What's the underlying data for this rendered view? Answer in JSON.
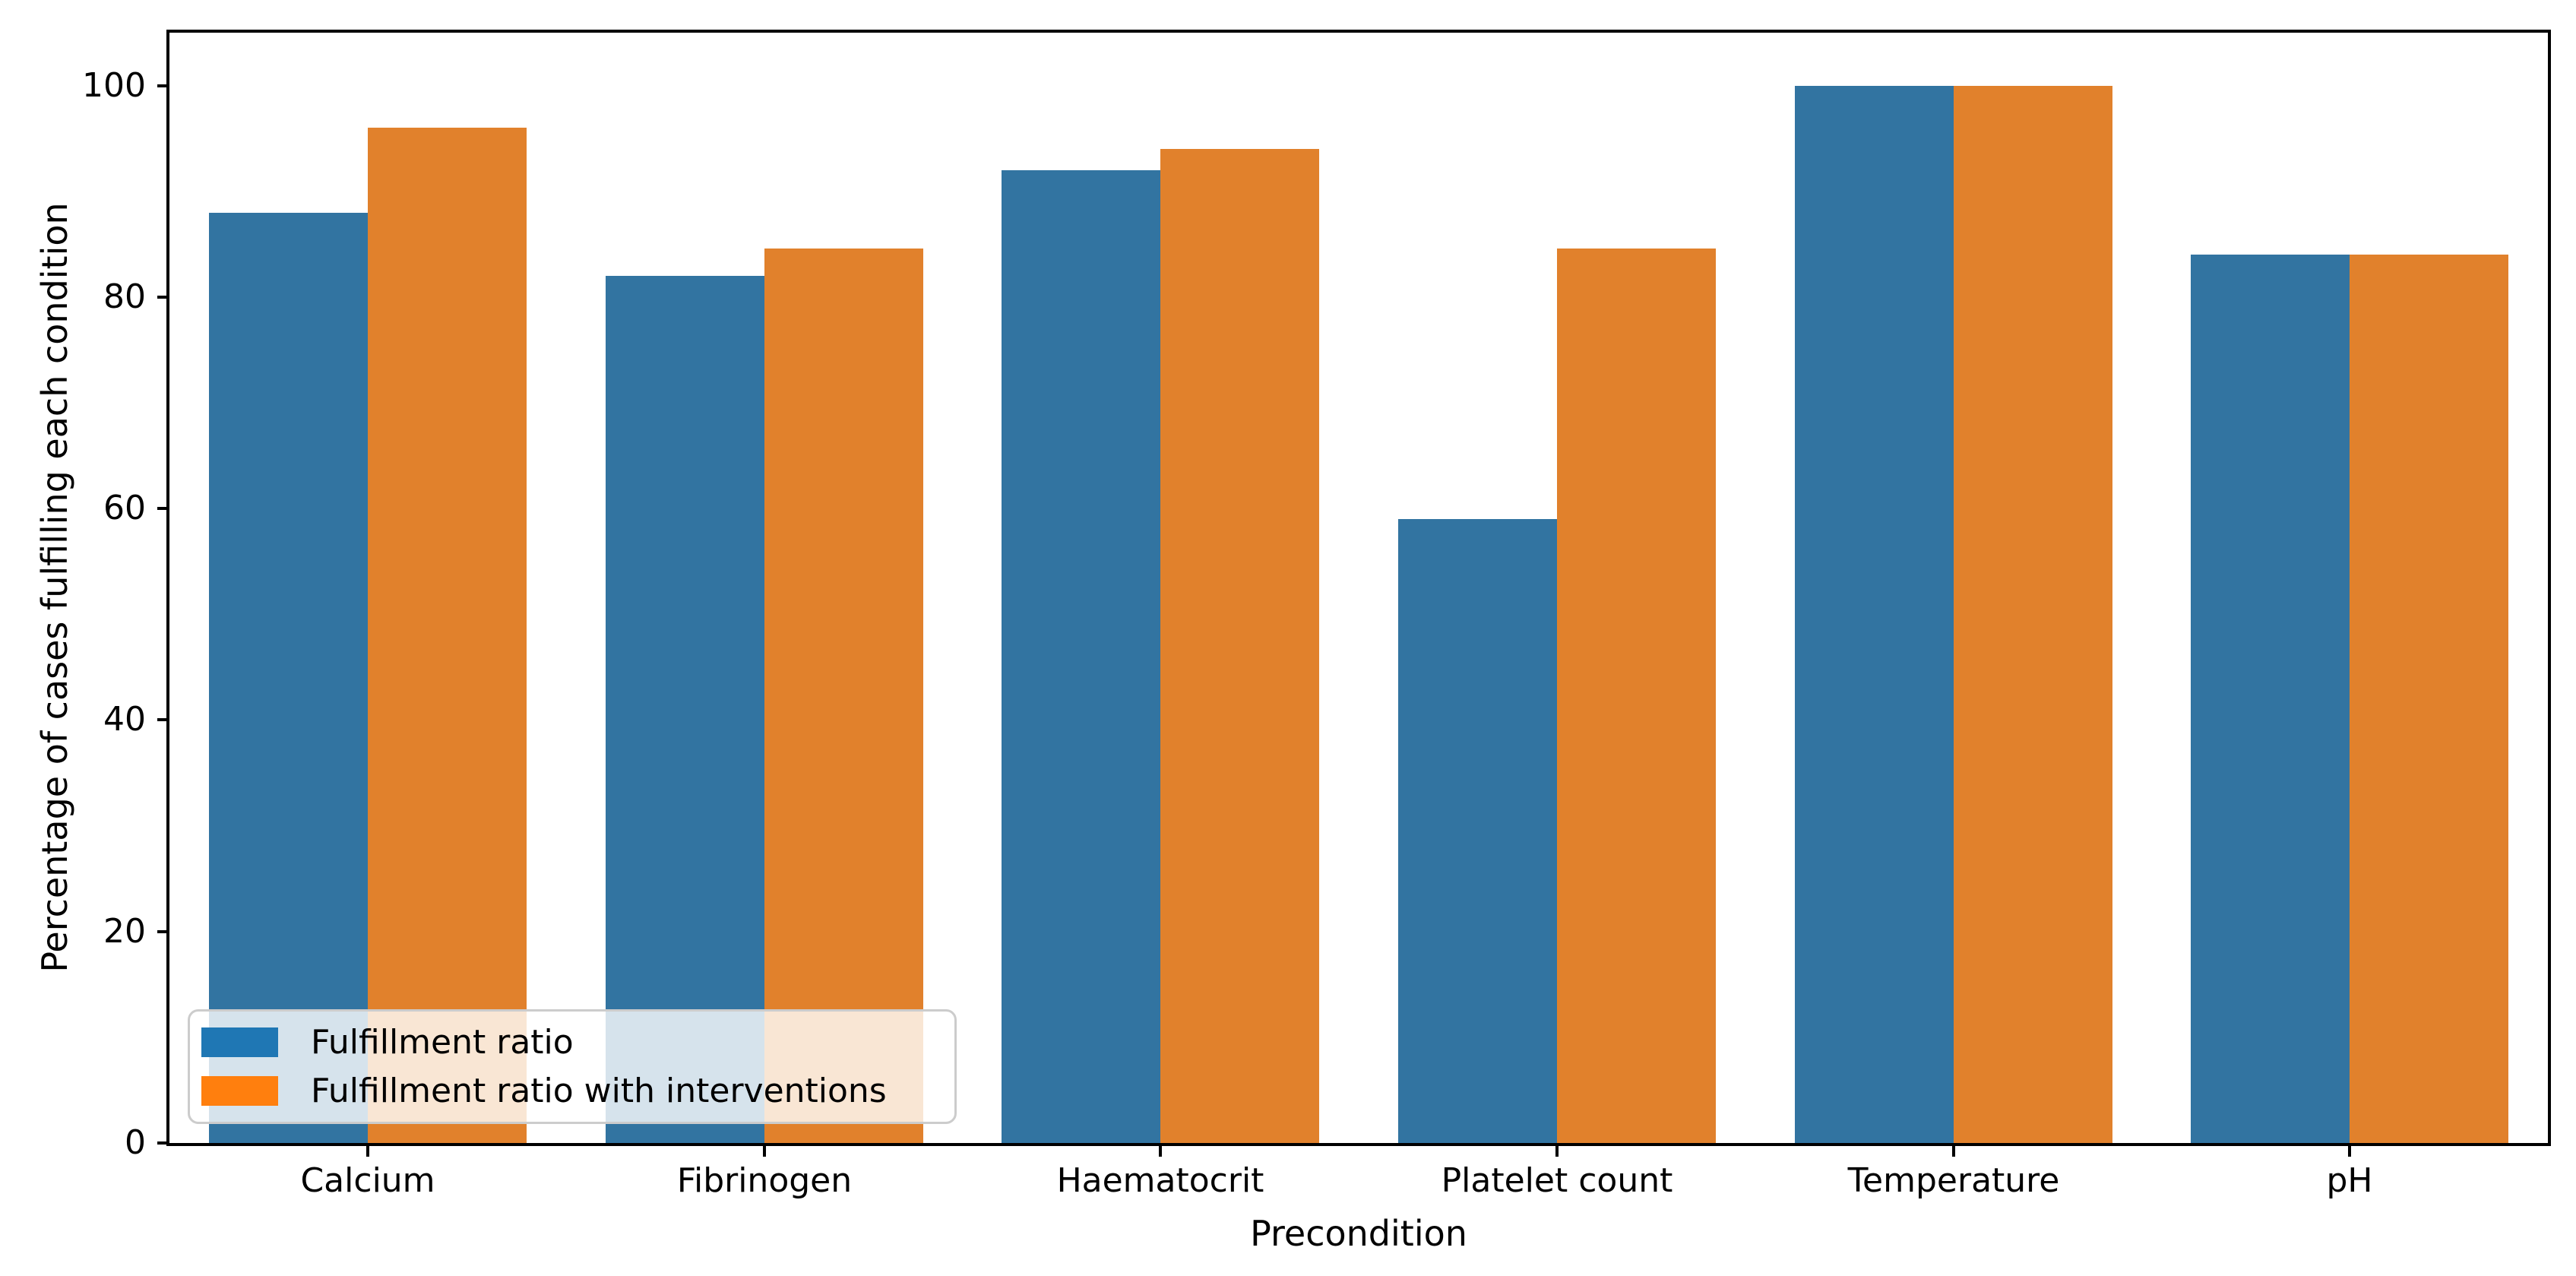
{
  "chart_data": {
    "type": "bar",
    "title": "",
    "xlabel": "Precondition",
    "ylabel": "Percentage of cases fulfilling each condition",
    "categories": [
      "Calcium",
      "Fibrinogen",
      "Haematocrit",
      "Platelet count",
      "Temperature",
      "pH"
    ],
    "series": [
      {
        "name": "Fulfillment ratio",
        "bar_color": "#3274a1",
        "legend_swatch_color": "#1f77b4",
        "values": [
          88,
          82,
          92,
          59,
          100,
          84
        ]
      },
      {
        "name": "Fulfillment ratio with interventions",
        "bar_color": "#e1812c",
        "legend_swatch_color": "#ff7f0e",
        "values": [
          96,
          84.6,
          94,
          84.6,
          100,
          84
        ]
      }
    ],
    "ylim": [
      0,
      105
    ],
    "yticks": [
      0,
      20,
      40,
      60,
      80,
      100
    ],
    "grid": false,
    "legend_position": "lower left",
    "spine_color": "#000000",
    "text_color": "#000000"
  }
}
